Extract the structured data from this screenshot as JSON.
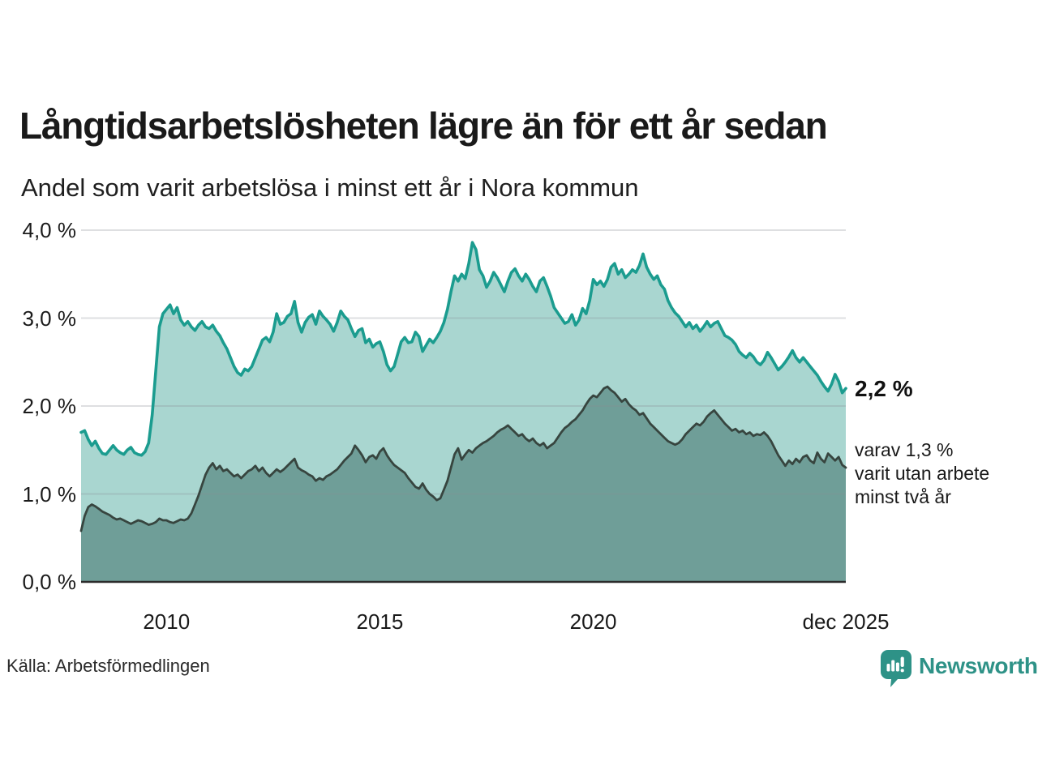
{
  "header": {
    "title": "Långtidsarbetslösheten lägre än för ett år sedan",
    "subtitle": "Andel som varit arbetslösa i minst ett år i Nora kommun"
  },
  "chart_data": {
    "type": "area",
    "title": "Långtidsarbetslösheten lägre än för ett år sedan",
    "subtitle": "Andel som varit arbetslösa i minst ett år i Nora kommun",
    "unit": "%",
    "frequency": "monthly",
    "x_start": "2008-01",
    "x_end": "2025-12",
    "ylim": [
      0,
      4
    ],
    "grid": true,
    "y_ticks": [
      {
        "value": 0,
        "label": "0,0 %"
      },
      {
        "value": 1,
        "label": "1,0 %"
      },
      {
        "value": 2,
        "label": "2,0 %"
      },
      {
        "value": 3,
        "label": "3,0 %"
      },
      {
        "value": 4,
        "label": "4,0 %"
      }
    ],
    "x_ticks": [
      {
        "month_index": 24,
        "label": "2010"
      },
      {
        "month_index": 84,
        "label": "2015"
      },
      {
        "month_index": 144,
        "label": "2020"
      },
      {
        "month_index": 215,
        "label": "dec 2025"
      }
    ],
    "series": [
      {
        "name": "Andel arbetslösa minst ett år",
        "latest_value": 2.2,
        "line_color": "#1b9c8f",
        "fill_color": "#a9d6d0",
        "values": [
          1.7,
          1.72,
          1.62,
          1.55,
          1.6,
          1.52,
          1.46,
          1.45,
          1.5,
          1.55,
          1.5,
          1.47,
          1.45,
          1.5,
          1.53,
          1.47,
          1.45,
          1.44,
          1.48,
          1.58,
          1.9,
          2.4,
          2.9,
          3.05,
          3.1,
          3.15,
          3.05,
          3.12,
          2.98,
          2.92,
          2.96,
          2.9,
          2.86,
          2.92,
          2.96,
          2.9,
          2.88,
          2.92,
          2.85,
          2.8,
          2.72,
          2.65,
          2.55,
          2.45,
          2.38,
          2.35,
          2.42,
          2.4,
          2.45,
          2.55,
          2.65,
          2.75,
          2.78,
          2.73,
          2.84,
          3.05,
          2.93,
          2.95,
          3.02,
          3.05,
          3.19,
          2.95,
          2.84,
          2.95,
          3.01,
          3.04,
          2.93,
          3.08,
          3.02,
          2.98,
          2.93,
          2.85,
          2.95,
          3.08,
          3.02,
          2.98,
          2.88,
          2.79,
          2.86,
          2.88,
          2.72,
          2.76,
          2.67,
          2.71,
          2.73,
          2.62,
          2.47,
          2.4,
          2.45,
          2.59,
          2.73,
          2.78,
          2.72,
          2.73,
          2.84,
          2.79,
          2.62,
          2.69,
          2.76,
          2.72,
          2.78,
          2.85,
          2.95,
          3.1,
          3.3,
          3.48,
          3.42,
          3.5,
          3.45,
          3.62,
          3.86,
          3.78,
          3.55,
          3.48,
          3.35,
          3.42,
          3.52,
          3.46,
          3.38,
          3.3,
          3.42,
          3.52,
          3.56,
          3.48,
          3.42,
          3.5,
          3.44,
          3.36,
          3.3,
          3.42,
          3.46,
          3.36,
          3.25,
          3.12,
          3.06,
          3.0,
          2.94,
          2.96,
          3.04,
          2.92,
          2.98,
          3.11,
          3.05,
          3.2,
          3.44,
          3.38,
          3.42,
          3.36,
          3.44,
          3.58,
          3.62,
          3.5,
          3.55,
          3.46,
          3.5,
          3.55,
          3.52,
          3.6,
          3.73,
          3.58,
          3.5,
          3.44,
          3.48,
          3.38,
          3.33,
          3.2,
          3.12,
          3.06,
          3.02,
          2.96,
          2.9,
          2.95,
          2.88,
          2.92,
          2.85,
          2.9,
          2.96,
          2.9,
          2.94,
          2.96,
          2.88,
          2.8,
          2.78,
          2.75,
          2.7,
          2.62,
          2.58,
          2.55,
          2.6,
          2.56,
          2.5,
          2.47,
          2.52,
          2.61,
          2.55,
          2.48,
          2.41,
          2.45,
          2.5,
          2.56,
          2.63,
          2.55,
          2.5,
          2.55,
          2.5,
          2.45,
          2.4,
          2.35,
          2.28,
          2.22,
          2.17,
          2.25,
          2.36,
          2.28,
          2.15,
          2.2
        ]
      },
      {
        "name": "varav utan arbete minst två år",
        "latest_value": 1.3,
        "line_color": "#37453f",
        "fill_color": "#6f9e98",
        "values": [
          0.58,
          0.75,
          0.85,
          0.88,
          0.86,
          0.83,
          0.8,
          0.78,
          0.76,
          0.73,
          0.71,
          0.72,
          0.7,
          0.68,
          0.66,
          0.68,
          0.7,
          0.69,
          0.67,
          0.65,
          0.66,
          0.68,
          0.72,
          0.7,
          0.7,
          0.68,
          0.67,
          0.69,
          0.71,
          0.7,
          0.72,
          0.78,
          0.88,
          0.98,
          1.1,
          1.22,
          1.3,
          1.35,
          1.28,
          1.32,
          1.26,
          1.28,
          1.24,
          1.2,
          1.22,
          1.18,
          1.22,
          1.26,
          1.28,
          1.32,
          1.26,
          1.3,
          1.24,
          1.2,
          1.24,
          1.28,
          1.25,
          1.28,
          1.32,
          1.36,
          1.4,
          1.3,
          1.27,
          1.25,
          1.22,
          1.2,
          1.15,
          1.18,
          1.16,
          1.2,
          1.22,
          1.25,
          1.28,
          1.33,
          1.38,
          1.42,
          1.46,
          1.55,
          1.5,
          1.44,
          1.36,
          1.42,
          1.44,
          1.4,
          1.48,
          1.52,
          1.44,
          1.38,
          1.33,
          1.3,
          1.27,
          1.24,
          1.18,
          1.13,
          1.08,
          1.06,
          1.12,
          1.05,
          1.0,
          0.97,
          0.93,
          0.95,
          1.05,
          1.15,
          1.3,
          1.45,
          1.52,
          1.39,
          1.45,
          1.5,
          1.47,
          1.52,
          1.55,
          1.58,
          1.6,
          1.63,
          1.66,
          1.7,
          1.73,
          1.75,
          1.78,
          1.74,
          1.7,
          1.66,
          1.68,
          1.63,
          1.6,
          1.63,
          1.58,
          1.55,
          1.58,
          1.52,
          1.55,
          1.58,
          1.64,
          1.7,
          1.75,
          1.78,
          1.82,
          1.85,
          1.9,
          1.95,
          2.02,
          2.08,
          2.12,
          2.1,
          2.15,
          2.2,
          2.22,
          2.18,
          2.15,
          2.1,
          2.05,
          2.08,
          2.02,
          1.98,
          1.95,
          1.9,
          1.92,
          1.86,
          1.8,
          1.76,
          1.72,
          1.68,
          1.64,
          1.6,
          1.58,
          1.56,
          1.58,
          1.62,
          1.68,
          1.72,
          1.76,
          1.8,
          1.78,
          1.82,
          1.88,
          1.92,
          1.95,
          1.9,
          1.85,
          1.8,
          1.76,
          1.72,
          1.74,
          1.7,
          1.72,
          1.68,
          1.7,
          1.66,
          1.68,
          1.67,
          1.7,
          1.66,
          1.6,
          1.52,
          1.44,
          1.38,
          1.32,
          1.38,
          1.34,
          1.4,
          1.36,
          1.42,
          1.44,
          1.38,
          1.35,
          1.47,
          1.4,
          1.36,
          1.46,
          1.42,
          1.38,
          1.42,
          1.33,
          1.3
        ]
      }
    ]
  },
  "annotations": {
    "latest_total": "2,2 %",
    "line1": "varav 1,3 %",
    "line2": "varit utan arbete",
    "line3": "minst två år"
  },
  "footer": {
    "source": "Källa: Arbetsförmedlingen",
    "brand": "Newsworthy"
  },
  "colors": {
    "series1_line": "#1b9c8f",
    "series1_fill": "#a9d6d0",
    "series2_line": "#37453f",
    "series2_fill": "#6f9e98",
    "gridline": "rgba(135,140,148,0.28)",
    "axis": "#2b2b2b",
    "brand_teal": "#2e9287"
  }
}
